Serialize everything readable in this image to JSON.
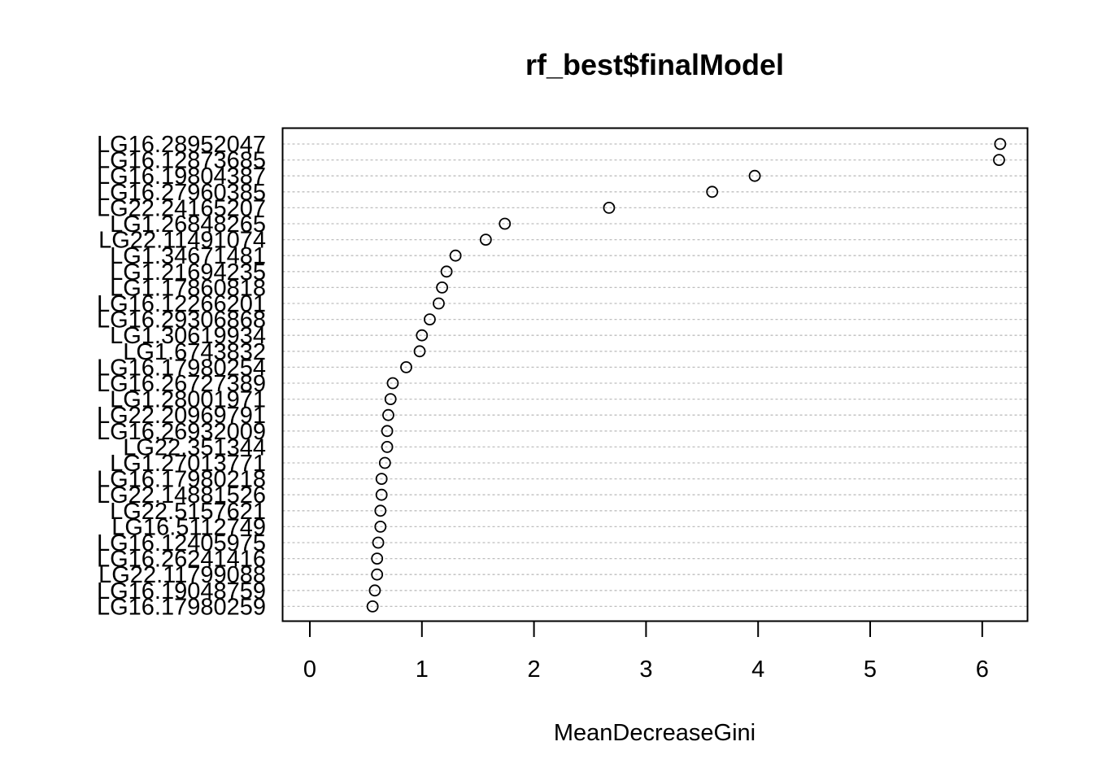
{
  "chart_data": {
    "type": "scatter",
    "title": "rf_best$finalModel",
    "xlabel": "MeanDecreaseGini",
    "ylabel": "",
    "xlim": [
      -0.25,
      6.4
    ],
    "xticks": [
      "0",
      "1",
      "2",
      "3",
      "4",
      "5",
      "6"
    ],
    "grid": true,
    "categories": [
      "LG16.28952047",
      "LG16.12873685",
      "LG16.19804387",
      "LG16.27960385",
      "LG22.24165207",
      "LG1.26848265",
      "LG22.11491074",
      "LG1.34671481",
      "LG1.21694235",
      "LG1.17860818",
      "LG16.12266201",
      "LG16.29306868",
      "LG1.30619934",
      "LG1.6743832",
      "LG16.17980254",
      "LG16.26727389",
      "LG1.28001971",
      "LG22.20969791",
      "LG16.26932009",
      "LG22.351344",
      "LG1.27013771",
      "LG16.17980218",
      "LG22.14881526",
      "LG22.5157621",
      "LG16.5112749",
      "LG16.12405975",
      "LG16.26241416",
      "LG22.11799088",
      "LG16.19048759",
      "LG16.17980259"
    ],
    "values": [
      6.16,
      6.15,
      3.97,
      3.59,
      2.67,
      1.74,
      1.57,
      1.3,
      1.22,
      1.18,
      1.15,
      1.07,
      1.0,
      0.98,
      0.86,
      0.74,
      0.72,
      0.7,
      0.69,
      0.69,
      0.67,
      0.64,
      0.64,
      0.63,
      0.63,
      0.61,
      0.6,
      0.6,
      0.58,
      0.56
    ]
  }
}
